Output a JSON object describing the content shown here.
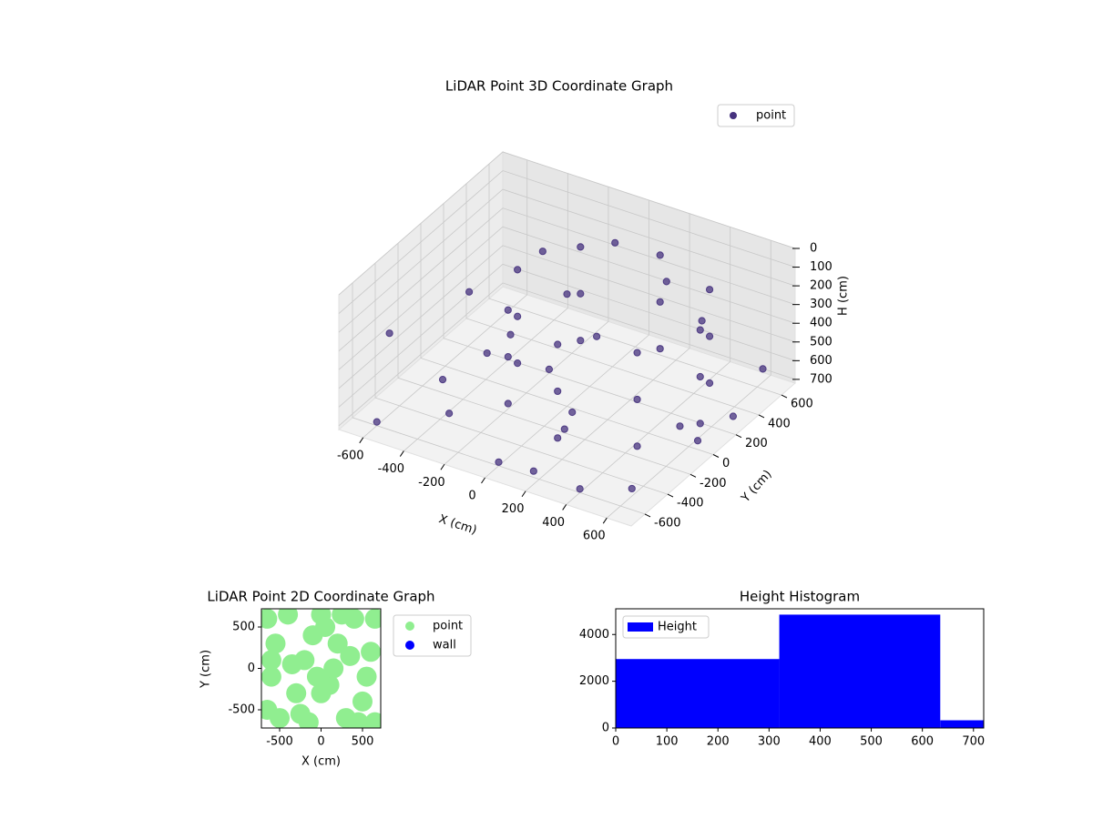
{
  "chart_data": [
    {
      "type": "scatter3d",
      "title": "LiDAR Point 3D Coordinate Graph",
      "xlabel": "X (cm)",
      "ylabel": "Y (cm)",
      "zlabel": "H (cm)",
      "xlim": [
        -720,
        720
      ],
      "ylim": [
        -720,
        720
      ],
      "zlim": [
        0,
        720
      ],
      "z_inverted": true,
      "xticks": [
        -600,
        -400,
        -200,
        0,
        200,
        400,
        600
      ],
      "yticks": [
        -600,
        -400,
        -200,
        0,
        200,
        400,
        600
      ],
      "zticks": [
        0,
        100,
        200,
        300,
        400,
        500,
        600,
        700
      ],
      "grid": true,
      "legend": "upper right",
      "series": [
        {
          "name": "point",
          "color": "#46327e",
          "x": [
            600,
            468,
            150,
            -168,
            -300,
            -168,
            150,
            468,
            600,
            468,
            150,
            -168,
            -300,
            -168,
            150,
            468,
            600,
            468,
            150,
            -168,
            -300,
            -168,
            150,
            468,
            -650,
            -500,
            -400,
            -300,
            -200,
            0,
            200,
            400,
            600,
            650,
            600,
            300,
            -600,
            -100,
            100,
            500,
            -250,
            0,
            350,
            -450,
            700,
            250,
            -650,
            -50
          ],
          "y": [
            100,
            418,
            550,
            418,
            100,
            -218,
            -350,
            -218,
            100,
            418,
            550,
            418,
            100,
            -218,
            -350,
            -218,
            100,
            418,
            550,
            418,
            100,
            -218,
            -350,
            -218,
            300,
            -200,
            500,
            -500,
            200,
            -600,
            -650,
            -600,
            -500,
            300,
            650,
            650,
            -600,
            600,
            -200,
            100,
            -50,
            0,
            250,
            100,
            -100,
            -400,
            -400,
            350
          ],
          "z": [
            150,
            150,
            150,
            150,
            150,
            150,
            150,
            150,
            400,
            400,
            400,
            400,
            400,
            400,
            400,
            400,
            650,
            650,
            650,
            650,
            650,
            650,
            650,
            650,
            500,
            650,
            300,
            600,
            700,
            700,
            650,
            700,
            680,
            700,
            650,
            500,
            700,
            200,
            700,
            700,
            400,
            120,
            60,
            650,
            600,
            450,
            350,
            550
          ]
        }
      ]
    },
    {
      "type": "scatter",
      "title": "LiDAR Point 2D Coordinate Graph",
      "xlabel": "X (cm)",
      "ylabel": "Y (cm)",
      "xlim": [
        -720,
        720
      ],
      "ylim": [
        -720,
        720
      ],
      "xticks": [
        -500,
        0,
        500
      ],
      "yticks": [
        -500,
        0,
        500
      ],
      "legend": "outside right",
      "series": [
        {
          "name": "point",
          "color": "#90ee90",
          "x": [
            -650,
            -600,
            -550,
            -400,
            -300,
            -200,
            -100,
            0,
            100,
            200,
            300,
            400,
            500,
            600,
            650,
            -650,
            -500,
            -250,
            0,
            150,
            350,
            550,
            -600,
            -350,
            -150,
            50,
            250,
            450,
            650,
            -50
          ],
          "y": [
            600,
            -100,
            300,
            650,
            -300,
            100,
            400,
            650,
            -200,
            300,
            -600,
            600,
            -400,
            200,
            -650,
            -500,
            -600,
            -550,
            -300,
            0,
            150,
            -100,
            100,
            50,
            -650,
            500,
            650,
            -650,
            600,
            -100
          ]
        },
        {
          "name": "wall",
          "color": "#0000ff",
          "x": [],
          "y": []
        }
      ]
    },
    {
      "type": "histogram",
      "title": "Height Histogram",
      "bins": [
        0,
        320,
        635,
        720
      ],
      "counts": [
        2950,
        4850,
        330
      ],
      "xlim": [
        0,
        720
      ],
      "ylim": [
        0,
        5100
      ],
      "xticks": [
        0,
        100,
        200,
        300,
        400,
        500,
        600,
        700
      ],
      "yticks": [
        0,
        2000,
        4000
      ],
      "legend": "upper left",
      "series": [
        {
          "name": "Height",
          "color": "#0000ff"
        }
      ]
    }
  ]
}
